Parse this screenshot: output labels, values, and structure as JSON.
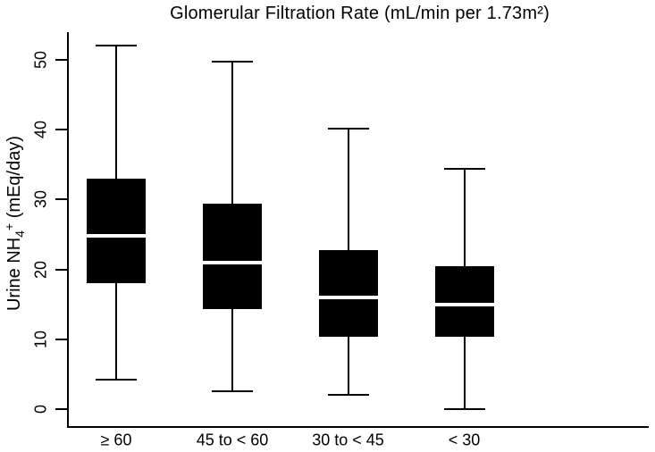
{
  "title": "Glomerular Filtration Rate (mL/min per 1.73m²)",
  "y_axis": {
    "label_parts": {
      "prefix": "Urine NH",
      "sub": "4",
      "sup": "+",
      "suffix": " (mEq/day)"
    }
  },
  "chart_data": {
    "type": "boxplot",
    "title": "Glomerular Filtration Rate (mL/min per 1.73m²)",
    "xlabel": "",
    "ylabel": "Urine NH4+ (mEq/day)",
    "ylim": [
      0,
      54
    ],
    "yticks": [
      0,
      10,
      20,
      30,
      40,
      50
    ],
    "grid": false,
    "legend": "none",
    "categories": [
      "≥ 60",
      "45 to < 60",
      "30 to < 45",
      "< 30"
    ],
    "series": [
      {
        "category": "≥ 60",
        "whisker_low": 4.2,
        "q1": 18.0,
        "median": 24.8,
        "q3": 33.0,
        "whisker_high": 52.1
      },
      {
        "category": "45 to < 60",
        "whisker_low": 2.5,
        "q1": 14.3,
        "median": 21.0,
        "q3": 29.4,
        "whisker_high": 49.8
      },
      {
        "category": "30 to < 45",
        "whisker_low": 2.0,
        "q1": 10.3,
        "median": 16.0,
        "q3": 22.7,
        "whisker_high": 40.2
      },
      {
        "category": "< 30",
        "whisker_low": 0.0,
        "q1": 10.4,
        "median": 15.0,
        "q3": 20.5,
        "whisker_high": 34.4
      }
    ],
    "colors": {
      "box_fill": "#000000",
      "median_line": "#ffffff",
      "axis": "#000000",
      "background": "#ffffff"
    }
  }
}
